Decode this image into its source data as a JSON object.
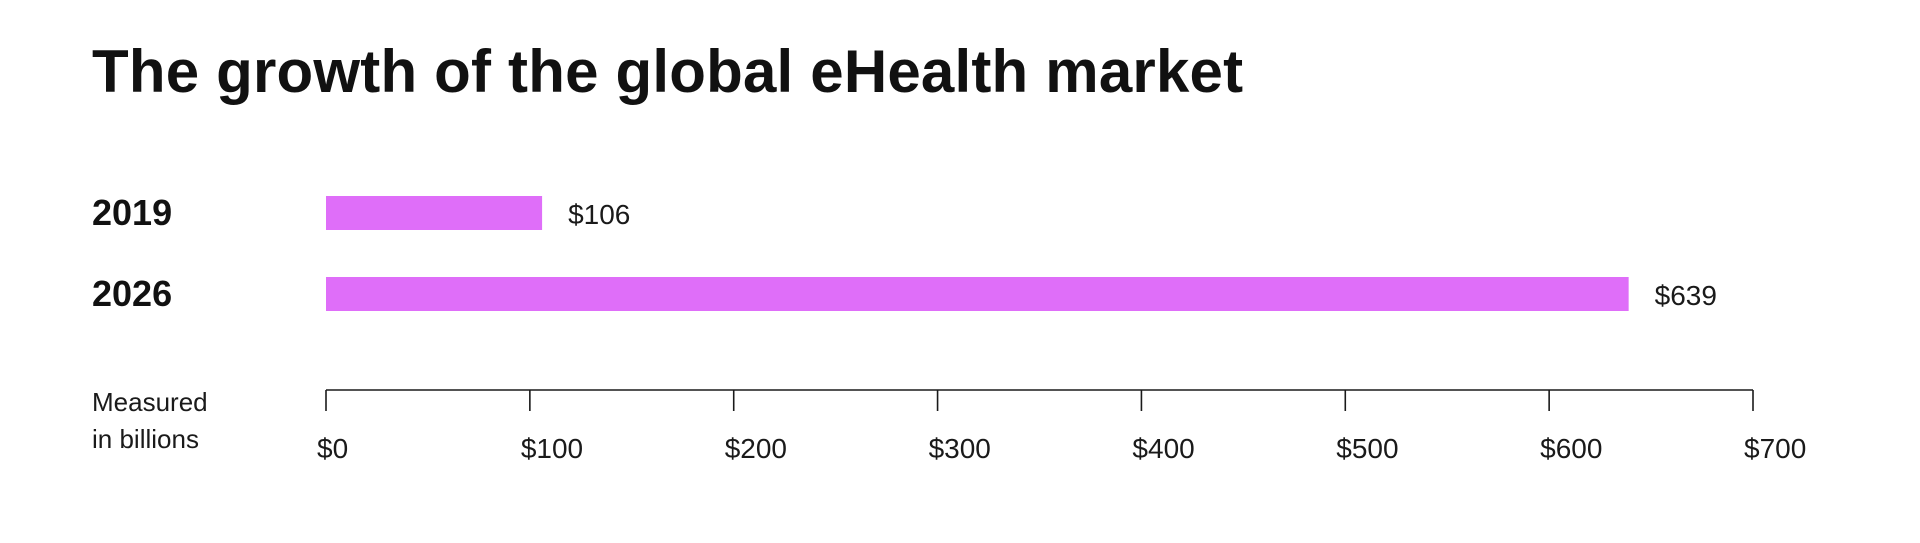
{
  "chart_data": {
    "type": "bar",
    "orientation": "horizontal",
    "title": "The growth of the global eHealth market",
    "categories": [
      "2019",
      "2026"
    ],
    "values": [
      106,
      639
    ],
    "value_labels": [
      "$106",
      "$639"
    ],
    "xlabel_lines": [
      "Measured",
      "in billions"
    ],
    "xlim": [
      0,
      700
    ],
    "x_ticks": [
      0,
      100,
      200,
      300,
      400,
      500,
      600,
      700
    ],
    "x_tick_labels": [
      "$0",
      "$100",
      "$200",
      "$300",
      "$400",
      "$500",
      "$600",
      "$700"
    ],
    "grid": false,
    "legend": "none",
    "bar_color": "#df6ef9",
    "axis_color": "#1a1a1a"
  }
}
